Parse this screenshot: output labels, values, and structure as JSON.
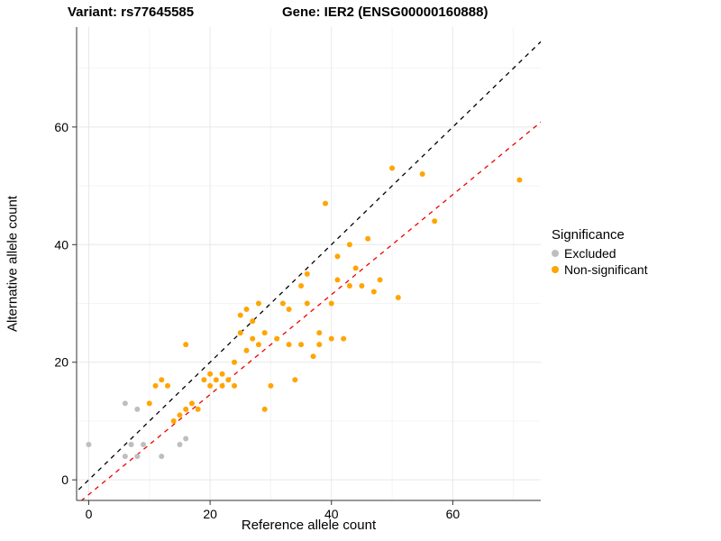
{
  "header": {
    "variant_title": "Variant: rs77645585",
    "gene_title": "Gene: IER2 (ENSG00000160888)"
  },
  "chart_data": {
    "type": "scatter",
    "xlabel": "Reference allele count",
    "ylabel": "Alternative allele count",
    "xlim": [
      -2,
      74.5
    ],
    "ylim": [
      -3.5,
      77
    ],
    "x_ticks": [
      0,
      20,
      40,
      60
    ],
    "y_ticks": [
      0,
      20,
      40,
      60
    ],
    "x_minor_ticks": [
      10,
      30,
      50,
      70
    ],
    "y_minor_ticks": [
      10,
      30,
      50,
      70
    ],
    "grid": true,
    "colors": {
      "major_grid": "#E8E8E8",
      "minor_grid": "#F4F4F4",
      "axis": "#333333",
      "tick_label": "#000000"
    },
    "lines": [
      {
        "name": "identity-line",
        "slope": 1,
        "intercept": 0,
        "color": "#000000",
        "dashed": true
      },
      {
        "name": "regression-line",
        "slope": 0.85,
        "intercept": -2.5,
        "color": "#EE0000",
        "dashed": true
      }
    ],
    "legend": {
      "title": "Significance",
      "position": "right",
      "entries": [
        {
          "label": "Excluded",
          "color": "#BEBEBE"
        },
        {
          "label": "Non-significant",
          "color": "#FFA500"
        }
      ]
    },
    "series": [
      {
        "name": "Excluded",
        "color": "#BEBEBE",
        "points": [
          [
            0,
            6
          ],
          [
            6,
            13
          ],
          [
            8,
            12
          ],
          [
            7,
            6
          ],
          [
            9,
            6
          ],
          [
            6,
            4
          ],
          [
            8,
            4
          ],
          [
            12,
            4
          ],
          [
            15,
            6
          ],
          [
            16,
            7
          ]
        ]
      },
      {
        "name": "Non-significant",
        "color": "#FFA500",
        "points": [
          [
            10,
            13
          ],
          [
            11,
            16
          ],
          [
            12,
            17
          ],
          [
            13,
            16
          ],
          [
            14,
            10
          ],
          [
            15,
            11
          ],
          [
            16,
            23
          ],
          [
            16,
            12
          ],
          [
            17,
            13
          ],
          [
            18,
            12
          ],
          [
            19,
            17
          ],
          [
            20,
            18
          ],
          [
            20,
            16
          ],
          [
            21,
            17
          ],
          [
            22,
            16
          ],
          [
            22,
            18
          ],
          [
            23,
            17
          ],
          [
            24,
            20
          ],
          [
            24,
            16
          ],
          [
            25,
            25
          ],
          [
            25,
            28
          ],
          [
            26,
            29
          ],
          [
            26,
            22
          ],
          [
            27,
            24
          ],
          [
            27,
            27
          ],
          [
            28,
            30
          ],
          [
            28,
            23
          ],
          [
            29,
            25
          ],
          [
            29,
            12
          ],
          [
            30,
            16
          ],
          [
            31,
            24
          ],
          [
            32,
            30
          ],
          [
            33,
            23
          ],
          [
            33,
            29
          ],
          [
            34,
            17
          ],
          [
            35,
            23
          ],
          [
            35,
            33
          ],
          [
            36,
            35
          ],
          [
            36,
            30
          ],
          [
            37,
            21
          ],
          [
            38,
            25
          ],
          [
            38,
            23
          ],
          [
            39,
            47
          ],
          [
            40,
            30
          ],
          [
            40,
            24
          ],
          [
            41,
            34
          ],
          [
            41,
            38
          ],
          [
            42,
            24
          ],
          [
            43,
            40
          ],
          [
            43,
            33
          ],
          [
            44,
            36
          ],
          [
            45,
            33
          ],
          [
            46,
            41
          ],
          [
            47,
            32
          ],
          [
            48,
            34
          ],
          [
            50,
            53
          ],
          [
            51,
            31
          ],
          [
            55,
            52
          ],
          [
            57,
            44
          ],
          [
            71,
            51
          ]
        ]
      }
    ]
  }
}
